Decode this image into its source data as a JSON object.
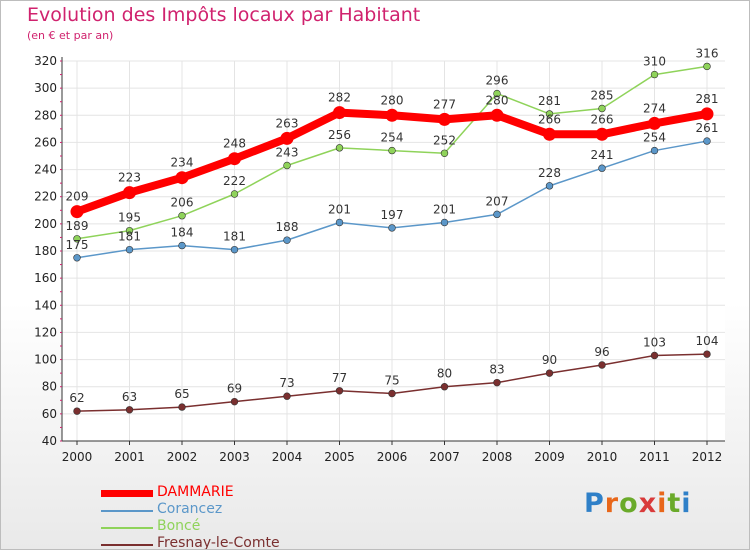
{
  "title": "Evolution des Impôts locaux par Habitant",
  "subtitle": "(en € et par an)",
  "brand": {
    "text": "Proxiti",
    "letter_colors": [
      "#2f80c8",
      "#e8671a",
      "#6aaa2a",
      "#d93a3a",
      "#e8671a",
      "#6aaa2a",
      "#2f80c8"
    ]
  },
  "chart_data": {
    "type": "line",
    "x": [
      "2000",
      "2001",
      "2002",
      "2003",
      "2004",
      "2005",
      "2006",
      "2007",
      "2008",
      "2009",
      "2010",
      "2011",
      "2012"
    ],
    "ylim": [
      40,
      320
    ],
    "yticks": [
      40,
      60,
      80,
      100,
      120,
      140,
      160,
      180,
      200,
      220,
      240,
      260,
      280,
      300,
      320
    ],
    "grid": true,
    "legend_position": "bottom-left",
    "series": [
      {
        "name": "DAMMARIE",
        "color": "#ff0000",
        "values": [
          209,
          223,
          234,
          248,
          263,
          282,
          280,
          277,
          280,
          266,
          266,
          274,
          281
        ],
        "labels": [
          "209",
          "223",
          "234",
          "248",
          "263",
          "282",
          "280",
          "277",
          "280",
          "266",
          "266",
          "274",
          "281"
        ]
      },
      {
        "name": "Corancez",
        "color": "#5b97c9",
        "values": [
          175,
          181,
          184,
          181,
          188,
          201,
          197,
          201,
          207,
          228,
          241,
          254,
          261
        ],
        "labels": [
          "175",
          "181",
          "184",
          "181",
          "188",
          "201",
          "197",
          "201",
          "207",
          "228",
          "241",
          "254",
          "261"
        ]
      },
      {
        "name": "Boncé",
        "color": "#8fd35a",
        "values": [
          189,
          195,
          206,
          222,
          243,
          256,
          254,
          252,
          296,
          281,
          285,
          310,
          316
        ],
        "labels": [
          "189",
          "195",
          "206",
          "222",
          "243",
          "256",
          "254",
          "252",
          "296",
          "281",
          "285",
          "310",
          "316"
        ]
      },
      {
        "name": "Fresnay-le-Comte",
        "color": "#7a2f2f",
        "values": [
          62,
          63,
          65,
          69,
          73,
          77,
          75,
          80,
          83,
          90,
          96,
          103,
          104
        ],
        "labels": [
          "62",
          "63",
          "65",
          "69",
          "73",
          "77",
          "75",
          "80",
          "83",
          "90",
          "96",
          "103",
          "104"
        ]
      }
    ]
  }
}
